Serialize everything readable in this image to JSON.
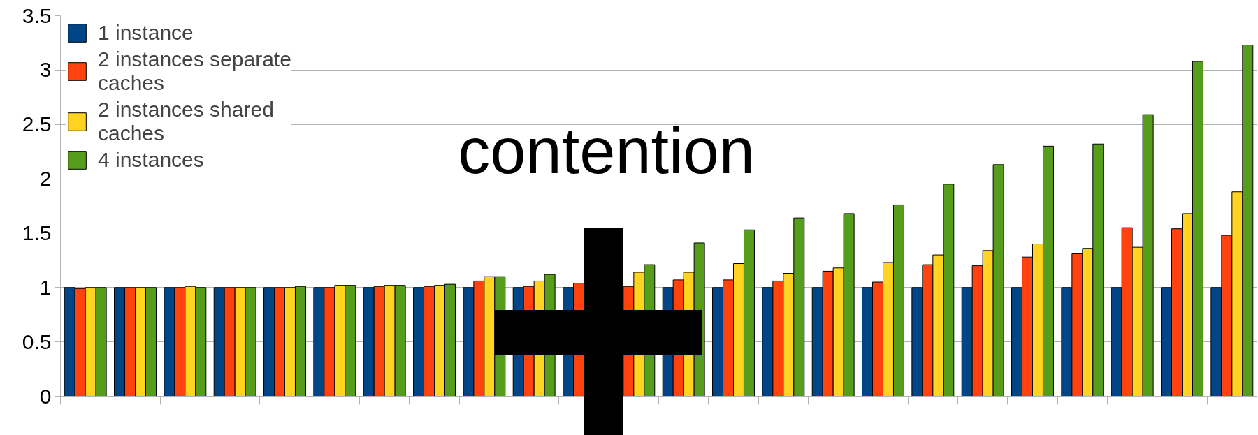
{
  "chart_data": {
    "type": "bar",
    "categories": [
      null,
      null,
      null,
      null,
      null,
      null,
      null,
      null,
      null,
      null,
      null,
      null,
      null,
      null,
      null,
      null,
      null,
      null,
      null,
      null,
      null,
      null,
      null,
      null
    ],
    "series": [
      {
        "name": "1 instance",
        "color": "#004586",
        "values": [
          1,
          1,
          1,
          1,
          1,
          1,
          1,
          1,
          1,
          1,
          1,
          null,
          1,
          1,
          1,
          1,
          1,
          1,
          1,
          1,
          1,
          1,
          1,
          1
        ]
      },
      {
        "name": "2 instances separate caches",
        "color": "#ff420e",
        "values": [
          0.99,
          1,
          1,
          1,
          1,
          1,
          1.01,
          1.01,
          1.06,
          1.01,
          1.04,
          1.01,
          1.07,
          1.07,
          1.06,
          1.15,
          1.05,
          1.21,
          1.2,
          1.28,
          1.31,
          1.55,
          1.54,
          1.48
        ]
      },
      {
        "name": "2 instances shared caches",
        "color": "#ffd320",
        "values": [
          1,
          1,
          1.01,
          1,
          1,
          1.02,
          1.02,
          1.02,
          1.1,
          1.06,
          null,
          1.14,
          1.14,
          1.22,
          1.13,
          1.18,
          1.23,
          1.3,
          1.34,
          1.4,
          1.36,
          1.37,
          1.68,
          1.88
        ]
      },
      {
        "name": "4 instances",
        "color": "#579d1c",
        "values": [
          1,
          1,
          1,
          1,
          1.01,
          1.02,
          1.02,
          1.03,
          1.1,
          1.12,
          null,
          1.21,
          1.41,
          1.53,
          1.64,
          1.68,
          1.76,
          1.95,
          2.13,
          2.3,
          2.32,
          2.59,
          3.08,
          3.23
        ]
      }
    ],
    "ylim": [
      0,
      3.5
    ],
    "yticks": [
      0,
      0.5,
      1,
      1.5,
      2,
      2.5,
      3,
      3.5
    ],
    "grid": "y",
    "legend": "top left",
    "annotations": [
      "contention"
    ]
  }
}
